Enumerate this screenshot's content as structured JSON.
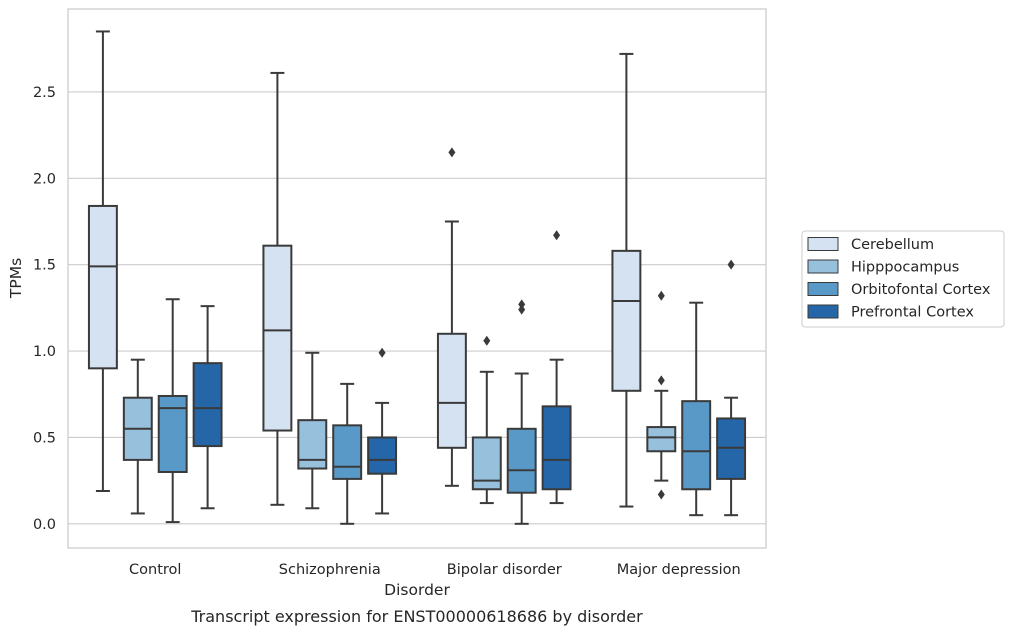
{
  "chart_data": {
    "type": "box",
    "title": "",
    "caption": "Transcript expression for ENST00000618686 by disorder",
    "xlabel": "Disorder",
    "ylabel": "TPMs",
    "ylim": [
      -0.14,
      2.98
    ],
    "yticks": [
      "0.0",
      "0.5",
      "1.0",
      "1.5",
      "2.0",
      "2.5"
    ],
    "grid": "horizontal",
    "legend_position": "right",
    "categories": [
      "Control",
      "Schizophrenia",
      "Bipolar disorder",
      "Major depression"
    ],
    "series": [
      {
        "name": "Cerebellum",
        "color": "#d4e2f1",
        "boxes": [
          {
            "min": 0.19,
            "q1": 0.9,
            "median": 1.49,
            "q3": 1.84,
            "max": 2.85,
            "outliers": []
          },
          {
            "min": 0.11,
            "q1": 0.54,
            "median": 1.12,
            "q3": 1.61,
            "max": 2.61,
            "outliers": []
          },
          {
            "min": 0.22,
            "q1": 0.44,
            "median": 0.7,
            "q3": 1.1,
            "max": 1.75,
            "outliers": [
              2.15
            ]
          },
          {
            "min": 0.1,
            "q1": 0.77,
            "median": 1.29,
            "q3": 1.58,
            "max": 2.72,
            "outliers": []
          }
        ]
      },
      {
        "name": "Hipppocampus",
        "color": "#97c0dd",
        "boxes": [
          {
            "min": 0.06,
            "q1": 0.37,
            "median": 0.55,
            "q3": 0.73,
            "max": 0.95,
            "outliers": []
          },
          {
            "min": 0.09,
            "q1": 0.32,
            "median": 0.37,
            "q3": 0.6,
            "max": 0.99,
            "outliers": []
          },
          {
            "min": 0.12,
            "q1": 0.2,
            "median": 0.25,
            "q3": 0.5,
            "max": 0.88,
            "outliers": [
              1.06
            ]
          },
          {
            "min": 0.25,
            "q1": 0.42,
            "median": 0.5,
            "q3": 0.56,
            "max": 0.77,
            "outliers": [
              1.32,
              0.83,
              0.17
            ]
          }
        ]
      },
      {
        "name": "Orbitofontal Cortex",
        "color": "#5999c8",
        "boxes": [
          {
            "min": 0.01,
            "q1": 0.3,
            "median": 0.67,
            "q3": 0.74,
            "max": 1.3,
            "outliers": []
          },
          {
            "min": 0.0,
            "q1": 0.26,
            "median": 0.33,
            "q3": 0.57,
            "max": 0.81,
            "outliers": []
          },
          {
            "min": 0.0,
            "q1": 0.18,
            "median": 0.31,
            "q3": 0.55,
            "max": 0.87,
            "outliers": [
              1.27,
              1.24
            ]
          },
          {
            "min": 0.05,
            "q1": 0.2,
            "median": 0.42,
            "q3": 0.71,
            "max": 1.28,
            "outliers": []
          }
        ]
      },
      {
        "name": "Prefrontal Cortex",
        "color": "#2466a7",
        "boxes": [
          {
            "min": 0.09,
            "q1": 0.45,
            "median": 0.67,
            "q3": 0.93,
            "max": 1.26,
            "outliers": []
          },
          {
            "min": 0.06,
            "q1": 0.29,
            "median": 0.37,
            "q3": 0.5,
            "max": 0.7,
            "outliers": [
              0.99
            ]
          },
          {
            "min": 0.12,
            "q1": 0.2,
            "median": 0.37,
            "q3": 0.68,
            "max": 0.95,
            "outliers": [
              1.67
            ]
          },
          {
            "min": 0.05,
            "q1": 0.26,
            "median": 0.44,
            "q3": 0.61,
            "max": 0.73,
            "outliers": [
              1.5
            ]
          }
        ]
      }
    ]
  }
}
